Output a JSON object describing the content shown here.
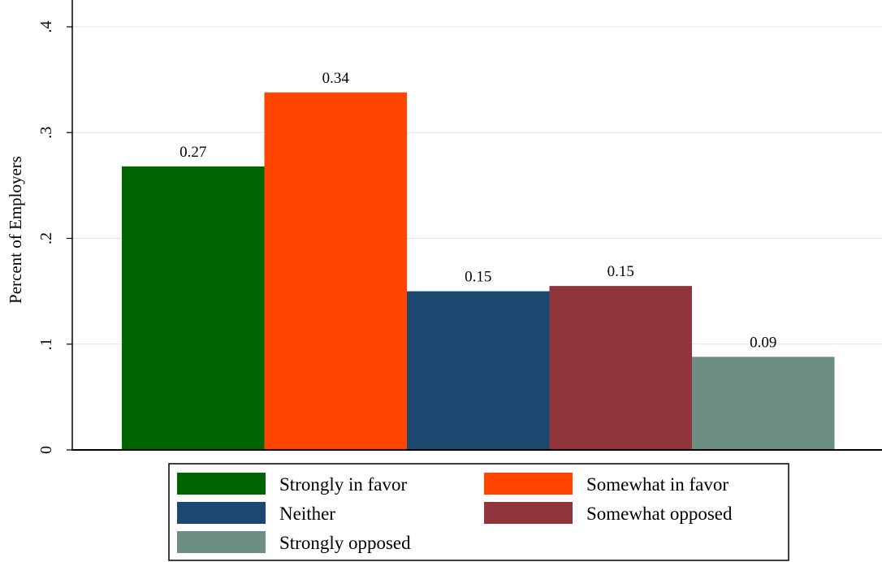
{
  "chart_data": {
    "type": "bar",
    "title": "",
    "xlabel": "",
    "ylabel": "Percent of Employers",
    "ylim": [
      0,
      0.4
    ],
    "yticks": [
      {
        "value": 0,
        "label": "0"
      },
      {
        "value": 0.1,
        "label": ".1"
      },
      {
        "value": 0.2,
        "label": ".2"
      },
      {
        "value": 0.3,
        "label": ".3"
      },
      {
        "value": 0.4,
        "label": ".4"
      }
    ],
    "grid": "horizontal",
    "legend_position": "bottom",
    "series": [
      {
        "name": "Strongly in favor",
        "value": 0.268,
        "label": "0.27",
        "color": "#006400"
      },
      {
        "name": "Somewhat in favor",
        "value": 0.338,
        "label": "0.34",
        "color": "#FF4500"
      },
      {
        "name": "Neither",
        "value": 0.15,
        "label": "0.15",
        "color": "#1C476F"
      },
      {
        "name": "Somewhat opposed",
        "value": 0.155,
        "label": "0.15",
        "color": "#90353B"
      },
      {
        "name": "Strongly opposed",
        "value": 0.088,
        "label": "0.09",
        "color": "#6E8E84"
      }
    ]
  }
}
